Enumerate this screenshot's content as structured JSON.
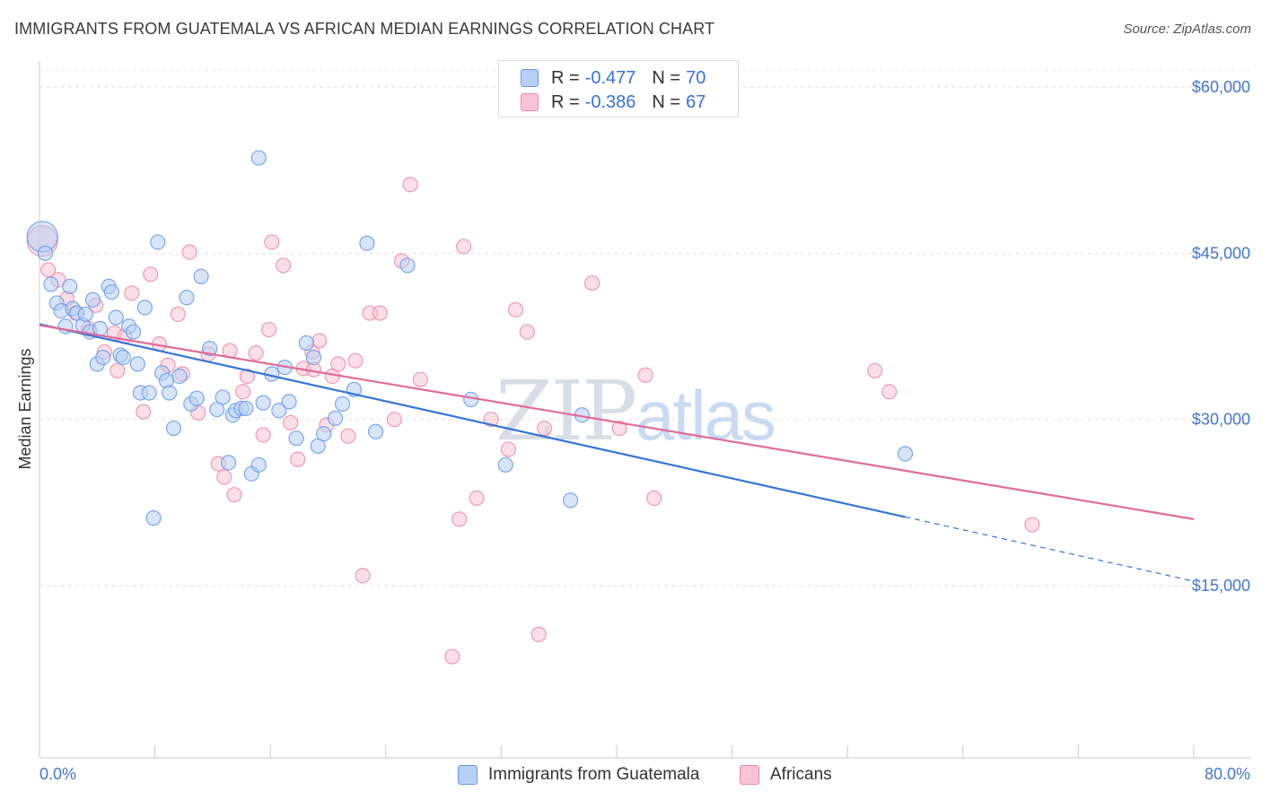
{
  "title": "IMMIGRANTS FROM GUATEMALA VS AFRICAN MEDIAN EARNINGS CORRELATION CHART",
  "source": "Source: ZipAtlas.com",
  "watermark": {
    "zip": "ZIP",
    "atlas": "atlas"
  },
  "legend": {
    "rows": [
      {
        "r_label": "R =",
        "r_value": "-0.477",
        "n_label": "N =",
        "n_value": "70",
        "color": "#6699ee"
      },
      {
        "r_label": "R =",
        "r_value": "-0.386",
        "n_label": "N =",
        "n_value": "67",
        "color": "#ee88aa"
      }
    ]
  },
  "chart_data": {
    "type": "scatter",
    "xlabel": "",
    "ylabel": "Median Earnings",
    "xlim": [
      0,
      80
    ],
    "ylim": [
      0,
      62000
    ],
    "x_tick_labels": {
      "min": "0.0%",
      "max": "80.0%"
    },
    "y_ticks": [
      {
        "value": 60000,
        "label": "$60,000"
      },
      {
        "value": 45000,
        "label": "$45,000"
      },
      {
        "value": 30000,
        "label": "$30,000"
      },
      {
        "value": 15000,
        "label": "$15,000"
      }
    ],
    "grid": "horizontal dashed",
    "series": [
      {
        "name": "Immigrants from Guatemala",
        "color": "#6699ee",
        "fill": "#b8d0f4",
        "trend": {
          "x0": 0,
          "y0": 38600,
          "x1": 60,
          "y1": 21200,
          "dashed_to_x": 80,
          "dashed_to_y": 15400
        },
        "points": [
          [
            0.2,
            46500
          ],
          [
            0.4,
            45000
          ],
          [
            0.8,
            42200
          ],
          [
            1.2,
            40500
          ],
          [
            1.5,
            39800
          ],
          [
            1.8,
            38400
          ],
          [
            2.1,
            42000
          ],
          [
            2.3,
            40000
          ],
          [
            2.6,
            39600
          ],
          [
            3.0,
            38500
          ],
          [
            3.2,
            39500
          ],
          [
            3.5,
            37900
          ],
          [
            3.7,
            40800
          ],
          [
            4.0,
            35000
          ],
          [
            4.2,
            38200
          ],
          [
            4.4,
            35600
          ],
          [
            4.8,
            42000
          ],
          [
            5.0,
            41500
          ],
          [
            5.3,
            39200
          ],
          [
            5.6,
            35800
          ],
          [
            5.8,
            35600
          ],
          [
            6.2,
            38400
          ],
          [
            6.5,
            37900
          ],
          [
            6.8,
            35000
          ],
          [
            7.0,
            32400
          ],
          [
            7.3,
            40100
          ],
          [
            7.6,
            32400
          ],
          [
            7.9,
            21100
          ],
          [
            8.2,
            46000
          ],
          [
            8.5,
            34200
          ],
          [
            8.8,
            33500
          ],
          [
            9.0,
            32400
          ],
          [
            9.3,
            29200
          ],
          [
            9.7,
            33900
          ],
          [
            10.2,
            41000
          ],
          [
            10.5,
            31400
          ],
          [
            10.9,
            31900
          ],
          [
            11.2,
            42900
          ],
          [
            11.8,
            36400
          ],
          [
            12.3,
            30900
          ],
          [
            12.7,
            32000
          ],
          [
            13.1,
            26100
          ],
          [
            13.4,
            30400
          ],
          [
            13.6,
            30800
          ],
          [
            14.0,
            31000
          ],
          [
            14.3,
            31000
          ],
          [
            14.7,
            25100
          ],
          [
            15.2,
            25900
          ],
          [
            15.5,
            31500
          ],
          [
            16.1,
            34100
          ],
          [
            16.6,
            30800
          ],
          [
            17.0,
            34700
          ],
          [
            17.3,
            31600
          ],
          [
            17.8,
            28300
          ],
          [
            18.5,
            36900
          ],
          [
            19.0,
            35600
          ],
          [
            19.3,
            27600
          ],
          [
            19.7,
            28700
          ],
          [
            20.5,
            30100
          ],
          [
            21.0,
            31400
          ],
          [
            21.8,
            32700
          ],
          [
            22.7,
            45900
          ],
          [
            23.3,
            28900
          ],
          [
            25.5,
            43900
          ],
          [
            15.2,
            53600
          ],
          [
            29.9,
            31800
          ],
          [
            32.3,
            25900
          ],
          [
            36.8,
            22700
          ],
          [
            37.6,
            30400
          ],
          [
            60.0,
            26900
          ]
        ]
      },
      {
        "name": "Africans",
        "color": "#ee88aa",
        "fill": "#f8c4d4",
        "trend": {
          "x0": 0,
          "y0": 38500,
          "x1": 80,
          "y1": 21000
        },
        "points": [
          [
            0.2,
            46100
          ],
          [
            0.6,
            43500
          ],
          [
            1.3,
            42600
          ],
          [
            1.9,
            40900
          ],
          [
            2.5,
            39600
          ],
          [
            3.4,
            38200
          ],
          [
            3.9,
            40300
          ],
          [
            4.5,
            36100
          ],
          [
            5.2,
            37800
          ],
          [
            5.9,
            37500
          ],
          [
            6.4,
            41400
          ],
          [
            7.2,
            30700
          ],
          [
            7.7,
            43100
          ],
          [
            8.3,
            36800
          ],
          [
            8.9,
            34900
          ],
          [
            9.6,
            39500
          ],
          [
            10.4,
            45100
          ],
          [
            11.0,
            30600
          ],
          [
            11.7,
            35900
          ],
          [
            12.4,
            26000
          ],
          [
            12.8,
            24800
          ],
          [
            13.5,
            23200
          ],
          [
            14.1,
            32500
          ],
          [
            14.4,
            33900
          ],
          [
            15.0,
            36000
          ],
          [
            15.5,
            28600
          ],
          [
            16.1,
            46000
          ],
          [
            16.9,
            43900
          ],
          [
            17.4,
            29700
          ],
          [
            17.9,
            26400
          ],
          [
            18.3,
            34600
          ],
          [
            18.9,
            36100
          ],
          [
            19.4,
            37100
          ],
          [
            19.9,
            29500
          ],
          [
            20.3,
            33900
          ],
          [
            20.7,
            35000
          ],
          [
            21.4,
            28500
          ],
          [
            21.9,
            35300
          ],
          [
            22.4,
            15900
          ],
          [
            22.9,
            39600
          ],
          [
            23.6,
            39600
          ],
          [
            24.6,
            30000
          ],
          [
            25.1,
            44300
          ],
          [
            25.7,
            51200
          ],
          [
            26.4,
            33600
          ],
          [
            28.6,
            8600
          ],
          [
            29.1,
            21000
          ],
          [
            29.4,
            45600
          ],
          [
            30.3,
            22900
          ],
          [
            31.3,
            30000
          ],
          [
            32.5,
            27300
          ],
          [
            33.0,
            39900
          ],
          [
            33.8,
            37900
          ],
          [
            34.6,
            10600
          ],
          [
            35.0,
            29200
          ],
          [
            38.3,
            42300
          ],
          [
            40.2,
            29200
          ],
          [
            42.0,
            34000
          ],
          [
            42.6,
            22900
          ],
          [
            57.9,
            34400
          ],
          [
            58.9,
            32500
          ],
          [
            68.8,
            20500
          ],
          [
            5.4,
            34400
          ],
          [
            9.9,
            34100
          ],
          [
            15.9,
            38100
          ],
          [
            19.0,
            34500
          ],
          [
            13.2,
            36200
          ]
        ]
      }
    ]
  },
  "bottom_legend": [
    {
      "label": "Immigrants from Guatemala",
      "color": "#6699ee",
      "fill": "#b8d0f4"
    },
    {
      "label": "Africans",
      "color": "#ee88aa",
      "fill": "#f8c4d4"
    }
  ]
}
